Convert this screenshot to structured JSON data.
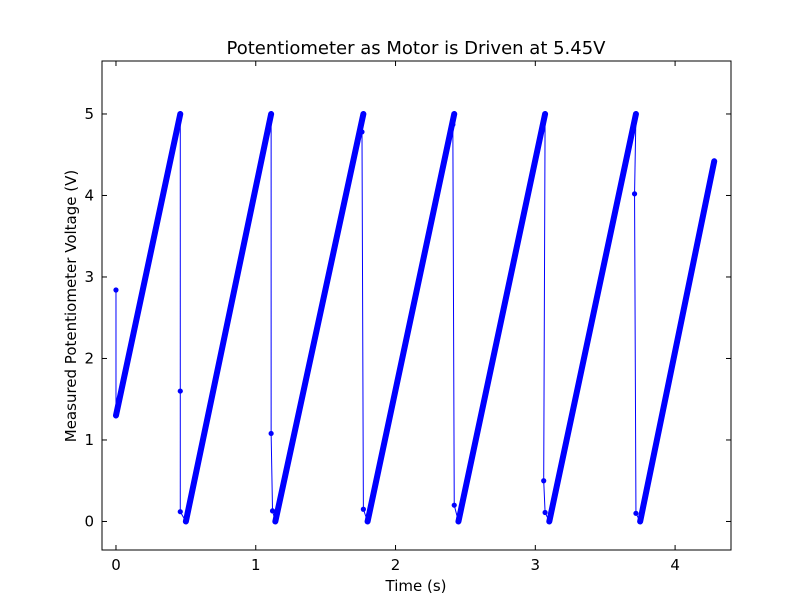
{
  "chart_data": {
    "type": "line",
    "title": "Potentiometer as Motor is Driven at 5.45V",
    "xlabel": "Time (s)",
    "ylabel": "Measured Potentiometer Voltage (V)",
    "xlim": [
      -0.1,
      4.4
    ],
    "ylim": [
      -0.35,
      5.65
    ],
    "xticks": [
      0,
      1,
      2,
      3,
      4
    ],
    "yticks": [
      0,
      1,
      2,
      3,
      4,
      5
    ],
    "grid": false,
    "legend": "none",
    "series": [
      {
        "color": "#0000ff",
        "marker": "dot",
        "ramps": [
          {
            "x_start": 0.0,
            "y_start": 1.3,
            "x_end": 0.46,
            "y_end": 5.0
          },
          {
            "x_start": 0.5,
            "y_start": 0.0,
            "x_end": 1.11,
            "y_end": 5.0
          },
          {
            "x_start": 1.14,
            "y_start": 0.0,
            "x_end": 1.77,
            "y_end": 5.0
          },
          {
            "x_start": 1.8,
            "y_start": 0.0,
            "x_end": 2.42,
            "y_end": 5.0
          },
          {
            "x_start": 2.45,
            "y_start": 0.0,
            "x_end": 3.07,
            "y_end": 5.0
          },
          {
            "x_start": 3.1,
            "y_start": 0.0,
            "x_end": 3.72,
            "y_end": 5.0
          },
          {
            "x_start": 3.75,
            "y_start": 0.0,
            "x_end": 4.28,
            "y_end": 4.42
          }
        ],
        "outliers": [
          {
            "x": 0.0,
            "y": 2.84
          },
          {
            "x": 0.46,
            "y": 1.6
          },
          {
            "x": 0.46,
            "y": 0.12
          },
          {
            "x": 1.11,
            "y": 1.08
          },
          {
            "x": 1.12,
            "y": 0.13
          },
          {
            "x": 1.76,
            "y": 4.78
          },
          {
            "x": 1.77,
            "y": 0.15
          },
          {
            "x": 2.41,
            "y": 4.87
          },
          {
            "x": 2.42,
            "y": 0.2
          },
          {
            "x": 3.06,
            "y": 0.5
          },
          {
            "x": 3.07,
            "y": 0.11
          },
          {
            "x": 3.71,
            "y": 4.02
          },
          {
            "x": 3.72,
            "y": 0.1
          }
        ]
      }
    ]
  }
}
